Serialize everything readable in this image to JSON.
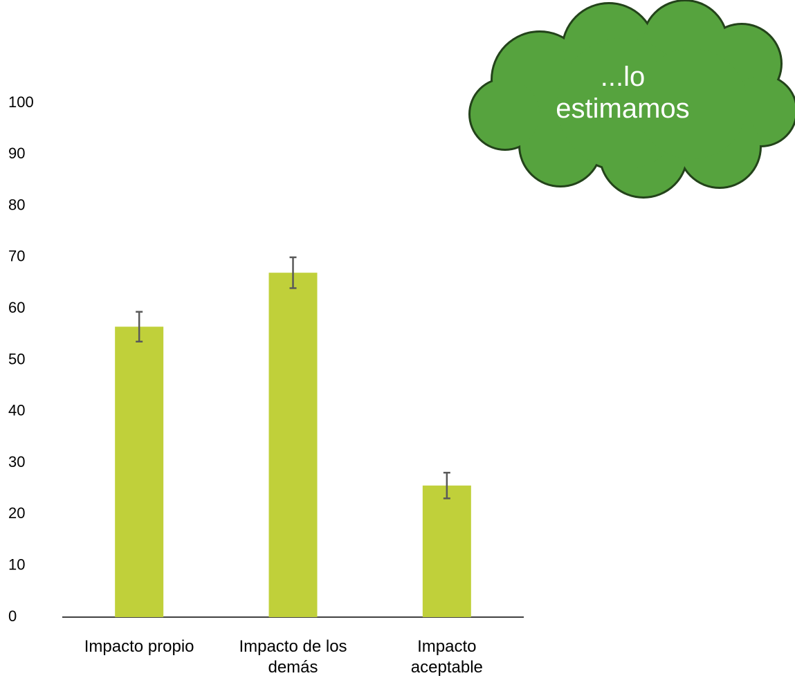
{
  "chart_data": {
    "type": "bar",
    "categories": [
      [
        "Impacto propio"
      ],
      [
        "Impacto de los",
        "demás"
      ],
      [
        "Impacto",
        "aceptable"
      ]
    ],
    "values": [
      56.5,
      67,
      25.6
    ],
    "errors": [
      2.9,
      3,
      2.5
    ],
    "color": "#c0d03a",
    "error_color": "#595959",
    "ylim": [
      0,
      100
    ],
    "yticks": [
      0,
      10,
      20,
      30,
      40,
      50,
      60,
      70,
      80,
      90,
      100
    ],
    "grid": false,
    "annotation": {
      "lines": [
        "...lo",
        "estimamos"
      ],
      "color": "#56a33e"
    }
  }
}
